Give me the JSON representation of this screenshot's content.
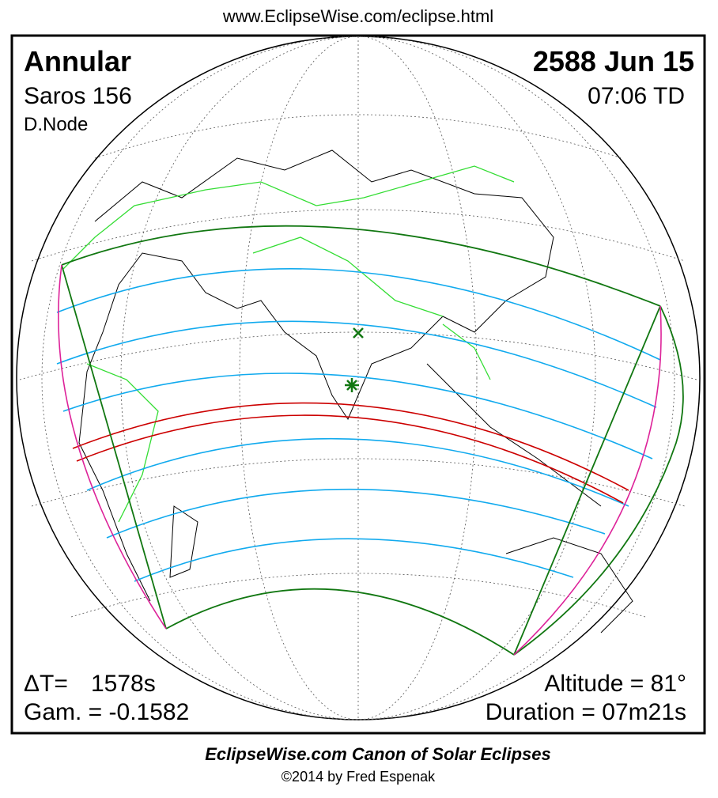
{
  "header": {
    "url": "www.EclipseWise.com/eclipse.html"
  },
  "eclipse": {
    "type": "Annular",
    "date": "2588 Jun 15",
    "saros": "Saros 156",
    "time": "07:06 TD",
    "node": "D.Node"
  },
  "stats": {
    "delta_t_label": "ΔT=",
    "delta_t_value": "1578s",
    "gamma": "Gam. = -0.1582",
    "altitude": "Altitude = 81°",
    "duration": "Duration = 07m21s"
  },
  "footer": {
    "title": "EclipseWise.com Canon of Solar Eclipses",
    "copyright": "©2014 by Fred Espenak"
  }
}
